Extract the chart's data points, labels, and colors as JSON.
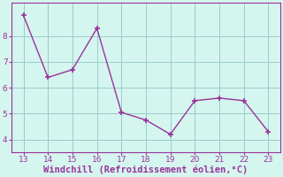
{
  "x": [
    13,
    14,
    15,
    16,
    17,
    18,
    19,
    20,
    21,
    22,
    23
  ],
  "y": [
    8.8,
    6.4,
    6.7,
    8.3,
    5.05,
    4.75,
    4.2,
    5.5,
    5.6,
    5.5,
    4.3
  ],
  "line_color": "#993399",
  "marker": "+",
  "marker_size": 4,
  "marker_linewidth": 1.2,
  "line_width": 1.0,
  "xlabel": "Windchill (Refroidissement éolien,°C)",
  "xlabel_color": "#993399",
  "background_color": "#d5f5ef",
  "grid_color": "#99cccc",
  "axis_color": "#993399",
  "tick_color": "#993399",
  "xlim": [
    12.5,
    23.5
  ],
  "ylim": [
    3.5,
    9.3
  ],
  "yticks": [
    4,
    5,
    6,
    7,
    8
  ],
  "xticks": [
    13,
    14,
    15,
    16,
    17,
    18,
    19,
    20,
    21,
    22,
    23
  ],
  "tick_fontsize": 6.5,
  "xlabel_fontsize": 7.5
}
